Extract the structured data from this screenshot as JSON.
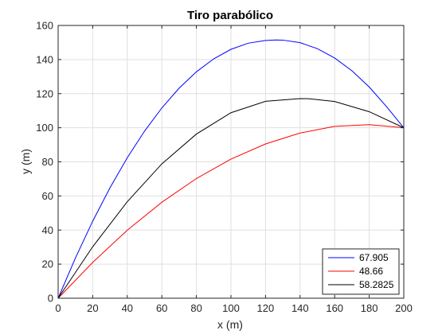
{
  "chart_data": {
    "type": "line",
    "title": "Tiro parabólico",
    "xlabel": "x (m)",
    "ylabel": "y (m)",
    "xlim": [
      0,
      200
    ],
    "ylim": [
      0,
      160
    ],
    "x_ticks": [
      "0",
      "20",
      "40",
      "60",
      "80",
      "100",
      "120",
      "140",
      "160",
      "180",
      "200"
    ],
    "y_ticks": [
      "0",
      "20",
      "40",
      "60",
      "80",
      "100",
      "120",
      "140",
      "160"
    ],
    "grid": true,
    "legend_position": "bottom-right",
    "series": [
      {
        "name": "67.905",
        "color": "#0000ff",
        "x": [
          0,
          10,
          20,
          30,
          40,
          50,
          60,
          70,
          80,
          90,
          100,
          110,
          120,
          126,
          130,
          140,
          150,
          160,
          170,
          180,
          190,
          200
        ],
        "y": [
          0,
          23.6,
          45.2,
          64.8,
          82.4,
          98.0,
          111.6,
          123.2,
          132.8,
          140.4,
          146.0,
          149.6,
          151.2,
          151.5,
          151.4,
          149.9,
          146.4,
          140.9,
          133.4,
          123.9,
          112.4,
          100.0
        ]
      },
      {
        "name": "48.66",
        "color": "#ff0000",
        "x": [
          0,
          20,
          40,
          60,
          80,
          100,
          120,
          140,
          160,
          180,
          200
        ],
        "y": [
          0,
          21.0,
          39.9,
          56.3,
          70.2,
          81.6,
          90.5,
          96.9,
          100.8,
          101.8,
          100.0
        ]
      },
      {
        "name": "58.2825",
        "color": "#000000",
        "x": [
          0,
          20,
          40,
          60,
          80,
          100,
          120,
          140,
          145,
          160,
          180,
          200
        ],
        "y": [
          0,
          30.2,
          56.6,
          78.8,
          96.3,
          108.8,
          115.5,
          117.1,
          117.0,
          115.4,
          109.4,
          100.0
        ]
      }
    ]
  }
}
